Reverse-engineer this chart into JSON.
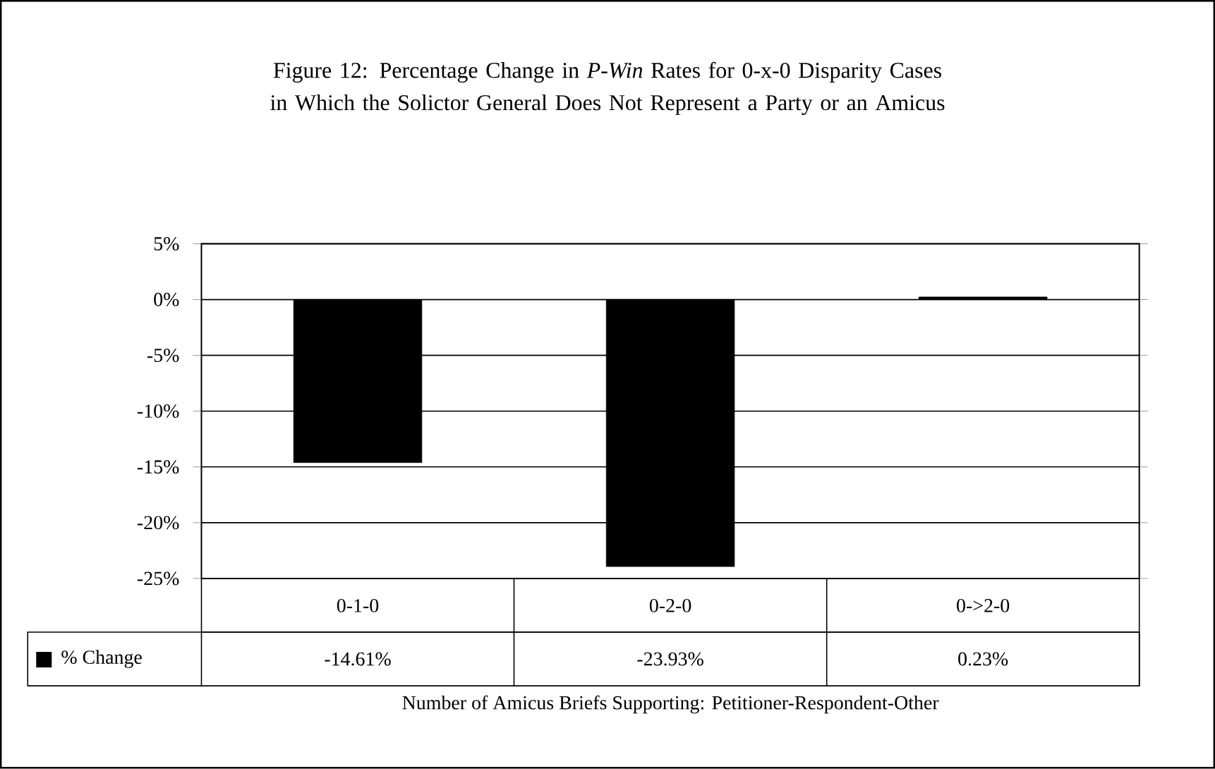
{
  "chart_data": {
    "type": "bar",
    "title": "Figure 12: Percentage Change in *P-Win* Rates for 0-x-0 Disparity Cases in Which the Solictor General Does Not Represent a Party or an Amicus",
    "xlabel": "Number of Amicus Briefs Supporting: Petitioner-Respondent-Other",
    "categories": [
      "0-1-0",
      "0-2-0",
      "0->2-0"
    ],
    "series": [
      {
        "name": "% Change",
        "color": "#000000",
        "values": [
          -14.61,
          -23.93,
          0.23
        ],
        "value_labels": [
          "-14.61%",
          "-23.93%",
          "0.23%"
        ]
      }
    ],
    "ylim": [
      -25,
      5
    ],
    "yticks": [
      {
        "value": -25,
        "label": "-25%"
      },
      {
        "value": -20,
        "label": "-20%"
      },
      {
        "value": -15,
        "label": "-15%"
      },
      {
        "value": -10,
        "label": "-10%"
      },
      {
        "value": -5,
        "label": "-5%"
      },
      {
        "value": 0,
        "label": "0%"
      },
      {
        "value": 5,
        "label": "5%"
      }
    ],
    "grid": "y",
    "legend": "bottom left"
  }
}
